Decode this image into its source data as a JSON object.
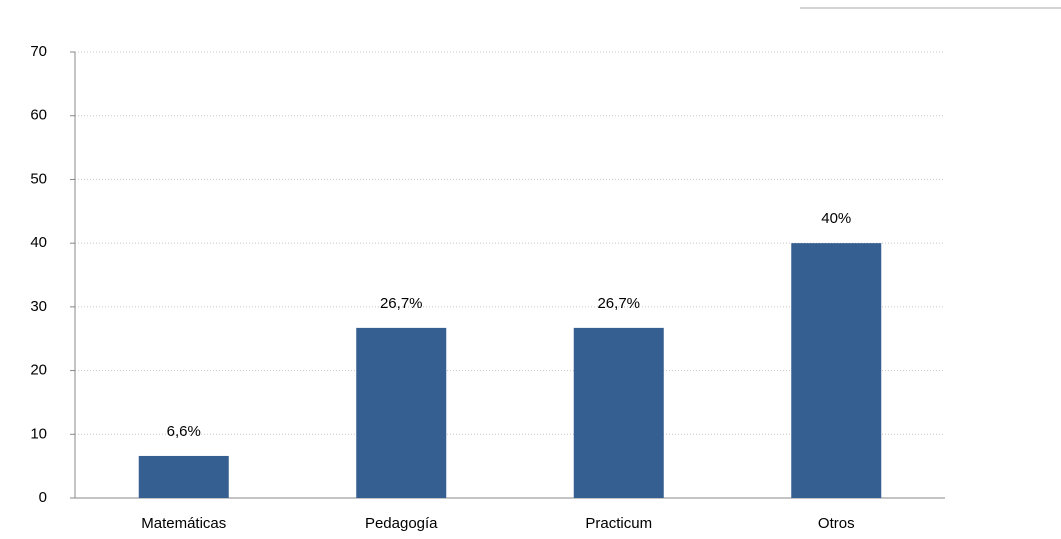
{
  "chart_data": {
    "type": "bar",
    "categories": [
      "Matemáticas",
      "Pedagogía",
      "Practicum",
      "Otros"
    ],
    "values": [
      6.6,
      26.7,
      26.7,
      40
    ],
    "value_labels": [
      "6,6%",
      "26,7%",
      "26,7%",
      "40%"
    ],
    "color": "#365f91",
    "ylim": [
      0,
      70
    ],
    "yticks": [
      0,
      10,
      20,
      30,
      40,
      50,
      60,
      70
    ],
    "grid": true
  }
}
